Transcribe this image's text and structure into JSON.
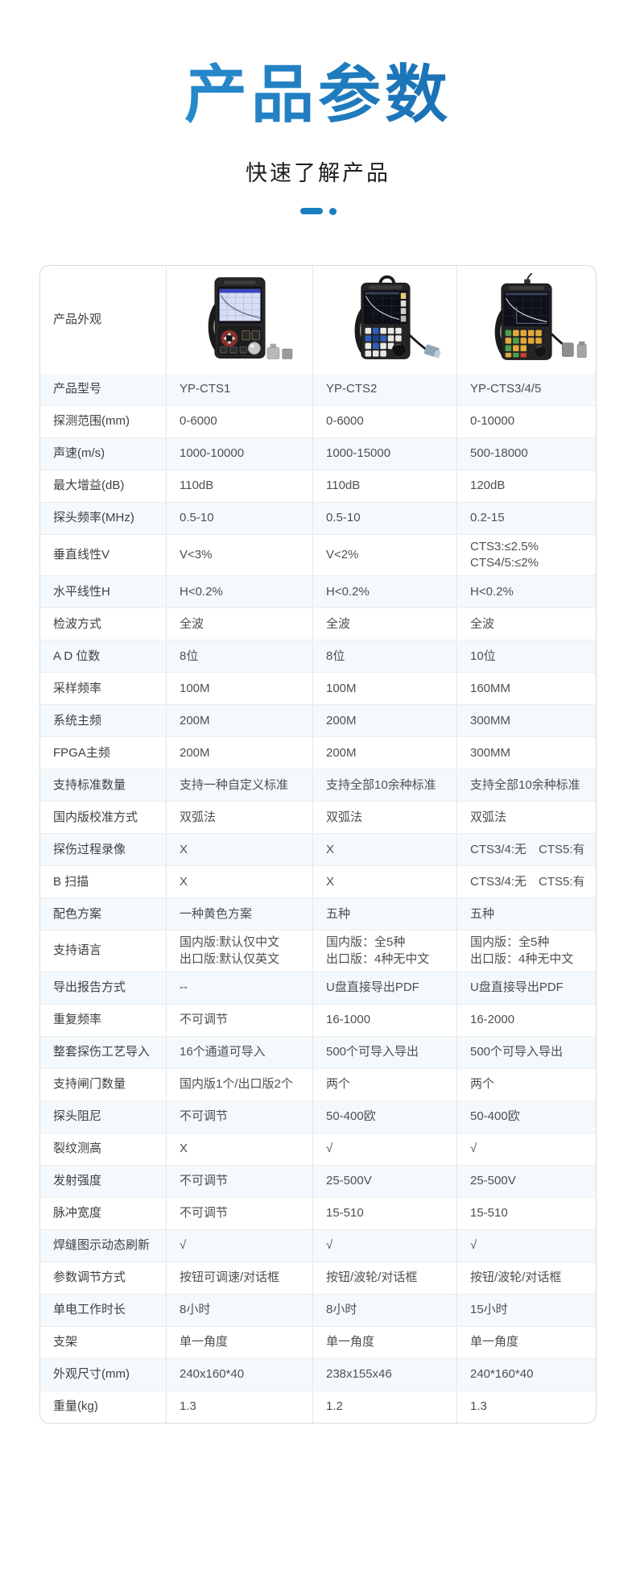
{
  "page": {
    "title": "产品参数",
    "subtitle": "快速了解产品"
  },
  "colors": {
    "accent_blue": "#1b7ec2",
    "title_gradient_left": "#2f9bdb",
    "title_gradient_right": "#1360a6",
    "row_shade": "#f4f9fd"
  },
  "table": {
    "appearance_label": "产品外观",
    "photos": [
      {
        "name": "yp-cts1-device-photo"
      },
      {
        "name": "yp-cts2-device-photo"
      },
      {
        "name": "yp-cts3-device-photo"
      }
    ],
    "rows": [
      {
        "label": "产品型号",
        "values": [
          "YP-CTS1",
          "YP-CTS2",
          "YP-CTS3/4/5"
        ]
      },
      {
        "label": "探测范围(mm)",
        "values": [
          "0-6000",
          "0-6000",
          "0-10000"
        ]
      },
      {
        "label": "声速(m/s)",
        "values": [
          "1000-10000",
          "1000-15000",
          "500-18000"
        ]
      },
      {
        "label": "最大增益(dB)",
        "values": [
          "110dB",
          "110dB",
          "120dB"
        ]
      },
      {
        "label": "探头频率(MHz)",
        "values": [
          "0.5-10",
          "0.5-10",
          "0.2-15"
        ]
      },
      {
        "label": "垂直线性V",
        "values": [
          "V<3%",
          "V<2%",
          "CTS3:≤2.5%\nCTS4/5:≤2%"
        ]
      },
      {
        "label": "水平线性H",
        "values": [
          "H<0.2%",
          "H<0.2%",
          "H<0.2%"
        ]
      },
      {
        "label": "检波方式",
        "values": [
          "全波",
          "全波",
          "全波"
        ]
      },
      {
        "label": "A D 位数",
        "values": [
          "8位",
          "8位",
          "10位"
        ]
      },
      {
        "label": "采样频率",
        "values": [
          "100M",
          "100M",
          "160MM"
        ]
      },
      {
        "label": "系统主频",
        "values": [
          "200M",
          "200M",
          "300MM"
        ]
      },
      {
        "label": "FPGA主频",
        "values": [
          "200M",
          "200M",
          "300MM"
        ]
      },
      {
        "label": "支持标准数量",
        "values": [
          "支持一种自定义标准",
          "支持全部10余种标准",
          "支持全部10余种标准"
        ]
      },
      {
        "label": "国内版校准方式",
        "values": [
          "双弧法",
          "双弧法",
          "双弧法"
        ]
      },
      {
        "label": "探伤过程录像",
        "values": [
          "X",
          "X",
          "CTS3/4:无　CTS5:有"
        ]
      },
      {
        "label": "B 扫描",
        "values": [
          "X",
          "X",
          "CTS3/4:无　CTS5:有"
        ]
      },
      {
        "label": "配色方案",
        "values": [
          "一种黄色方案",
          "五种",
          "五种"
        ]
      },
      {
        "label": "支持语言",
        "values": [
          "国内版:默认仅中文\n出口版:默认仅英文",
          "国内版：全5种\n出口版：4种无中文",
          "国内版：全5种\n出口版：4种无中文"
        ]
      },
      {
        "label": "导出报告方式",
        "values": [
          "--",
          "U盘直接导出PDF",
          "U盘直接导出PDF"
        ]
      },
      {
        "label": "重复频率",
        "values": [
          "不可调节",
          "16-1000",
          "16-2000"
        ]
      },
      {
        "label": "整套探伤工艺导入",
        "values": [
          "16个通道可导入",
          "500个可导入导出",
          "500个可导入导出"
        ]
      },
      {
        "label": "支持闸门数量",
        "values": [
          "国内版1个/出口版2个",
          "两个",
          "两个"
        ]
      },
      {
        "label": "探头阻尼",
        "values": [
          "不可调节",
          "50-400欧",
          "50-400欧"
        ]
      },
      {
        "label": "裂纹测高",
        "values": [
          "X",
          "√",
          "√"
        ]
      },
      {
        "label": "发射强度",
        "values": [
          "不可调节",
          "25-500V",
          "25-500V"
        ]
      },
      {
        "label": "脉冲宽度",
        "values": [
          "不可调节",
          "15-510",
          "15-510"
        ]
      },
      {
        "label": "焊缝图示动态刷新",
        "values": [
          "√",
          "√",
          "√"
        ]
      },
      {
        "label": "参数调节方式",
        "values": [
          "按钮可调速/对话框",
          "按钮/波轮/对话框",
          "按钮/波轮/对话框"
        ]
      },
      {
        "label": "单电工作时长",
        "values": [
          "8小时",
          "8小时",
          "15小时"
        ]
      },
      {
        "label": "支架",
        "values": [
          "单一角度",
          "单一角度",
          "单一角度"
        ]
      },
      {
        "label": "外观尺寸(mm)",
        "values": [
          "240x160*40",
          "238x155x46",
          "240*160*40"
        ]
      },
      {
        "label": "重量(kg)",
        "values": [
          "1.3",
          "1.2",
          "1.3"
        ]
      }
    ]
  }
}
